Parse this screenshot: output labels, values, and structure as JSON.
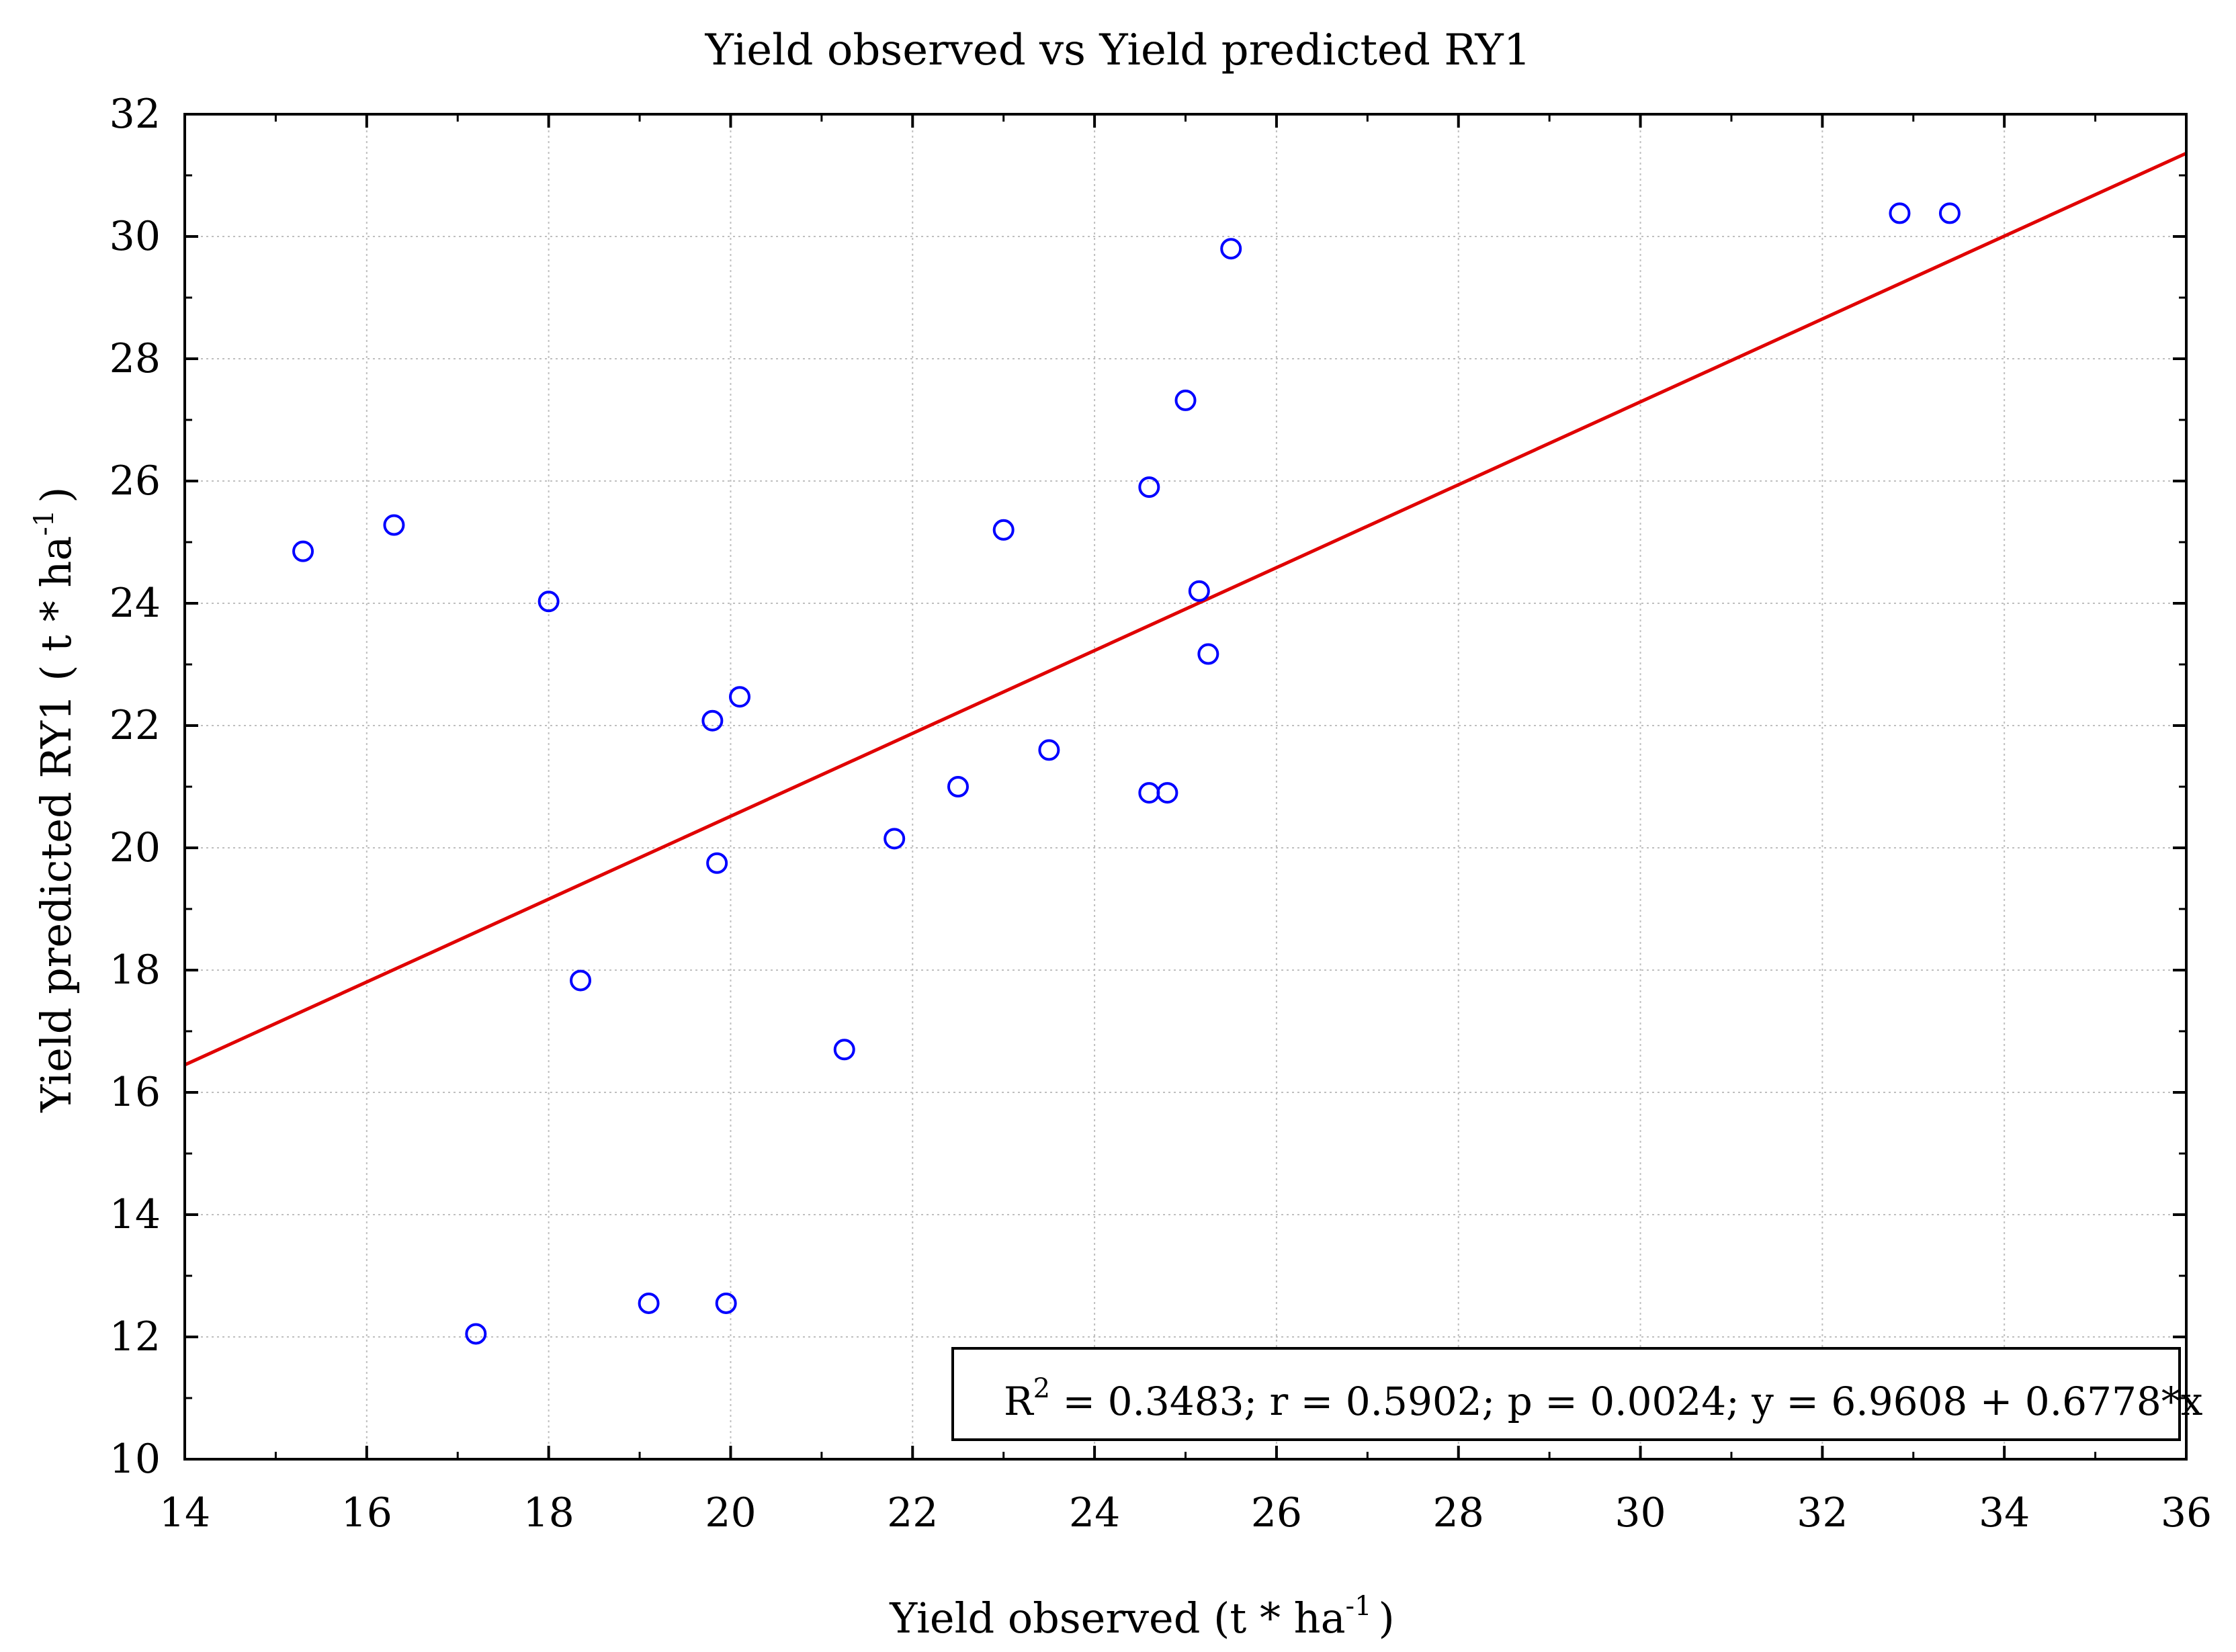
{
  "chart_data": {
    "type": "scatter",
    "title": "Yield observed vs Yield predicted RY1",
    "xlabel": {
      "main": "Yield observed (t * ha",
      "sup": "-1",
      "end": ")"
    },
    "ylabel": {
      "main": "Yield predicted RY1 ( t * ha",
      "sup": "-1",
      "end": ")"
    },
    "xlim": [
      14,
      36
    ],
    "ylim": [
      10,
      32
    ],
    "xticks": [
      14,
      16,
      18,
      20,
      22,
      24,
      26,
      28,
      30,
      32,
      34,
      36
    ],
    "yticks": [
      10,
      12,
      14,
      16,
      18,
      20,
      22,
      24,
      26,
      28,
      30,
      32
    ],
    "grid": true,
    "points": [
      {
        "x": 15.3,
        "y": 24.85
      },
      {
        "x": 16.3,
        "y": 25.28
      },
      {
        "x": 17.2,
        "y": 12.05
      },
      {
        "x": 18.0,
        "y": 24.03
      },
      {
        "x": 18.35,
        "y": 17.83
      },
      {
        "x": 19.1,
        "y": 12.55
      },
      {
        "x": 19.8,
        "y": 22.08
      },
      {
        "x": 19.85,
        "y": 19.75
      },
      {
        "x": 19.95,
        "y": 12.55
      },
      {
        "x": 20.1,
        "y": 22.47
      },
      {
        "x": 21.25,
        "y": 16.7
      },
      {
        "x": 21.8,
        "y": 20.15
      },
      {
        "x": 22.5,
        "y": 21.0
      },
      {
        "x": 23.0,
        "y": 25.2
      },
      {
        "x": 23.5,
        "y": 21.6
      },
      {
        "x": 24.6,
        "y": 25.9
      },
      {
        "x": 24.6,
        "y": 20.9
      },
      {
        "x": 24.8,
        "y": 20.9
      },
      {
        "x": 25.0,
        "y": 27.32
      },
      {
        "x": 25.15,
        "y": 24.2
      },
      {
        "x": 25.25,
        "y": 23.17
      },
      {
        "x": 25.5,
        "y": 29.8
      },
      {
        "x": 32.85,
        "y": 30.38
      },
      {
        "x": 33.4,
        "y": 30.38
      }
    ],
    "regression": {
      "intercept": 6.9608,
      "slope": 0.6778
    },
    "stats": {
      "r2_label": "R",
      "r2_sup": "2",
      "rest": " = 0.3483;  r = 0.5902; p = 0.0024;  y = 6.9608 + 0.6778*x"
    },
    "colors": {
      "points": "#0000ff",
      "regression": "#e00000",
      "grid": "#bfbfbf",
      "axis": "#000000"
    }
  }
}
